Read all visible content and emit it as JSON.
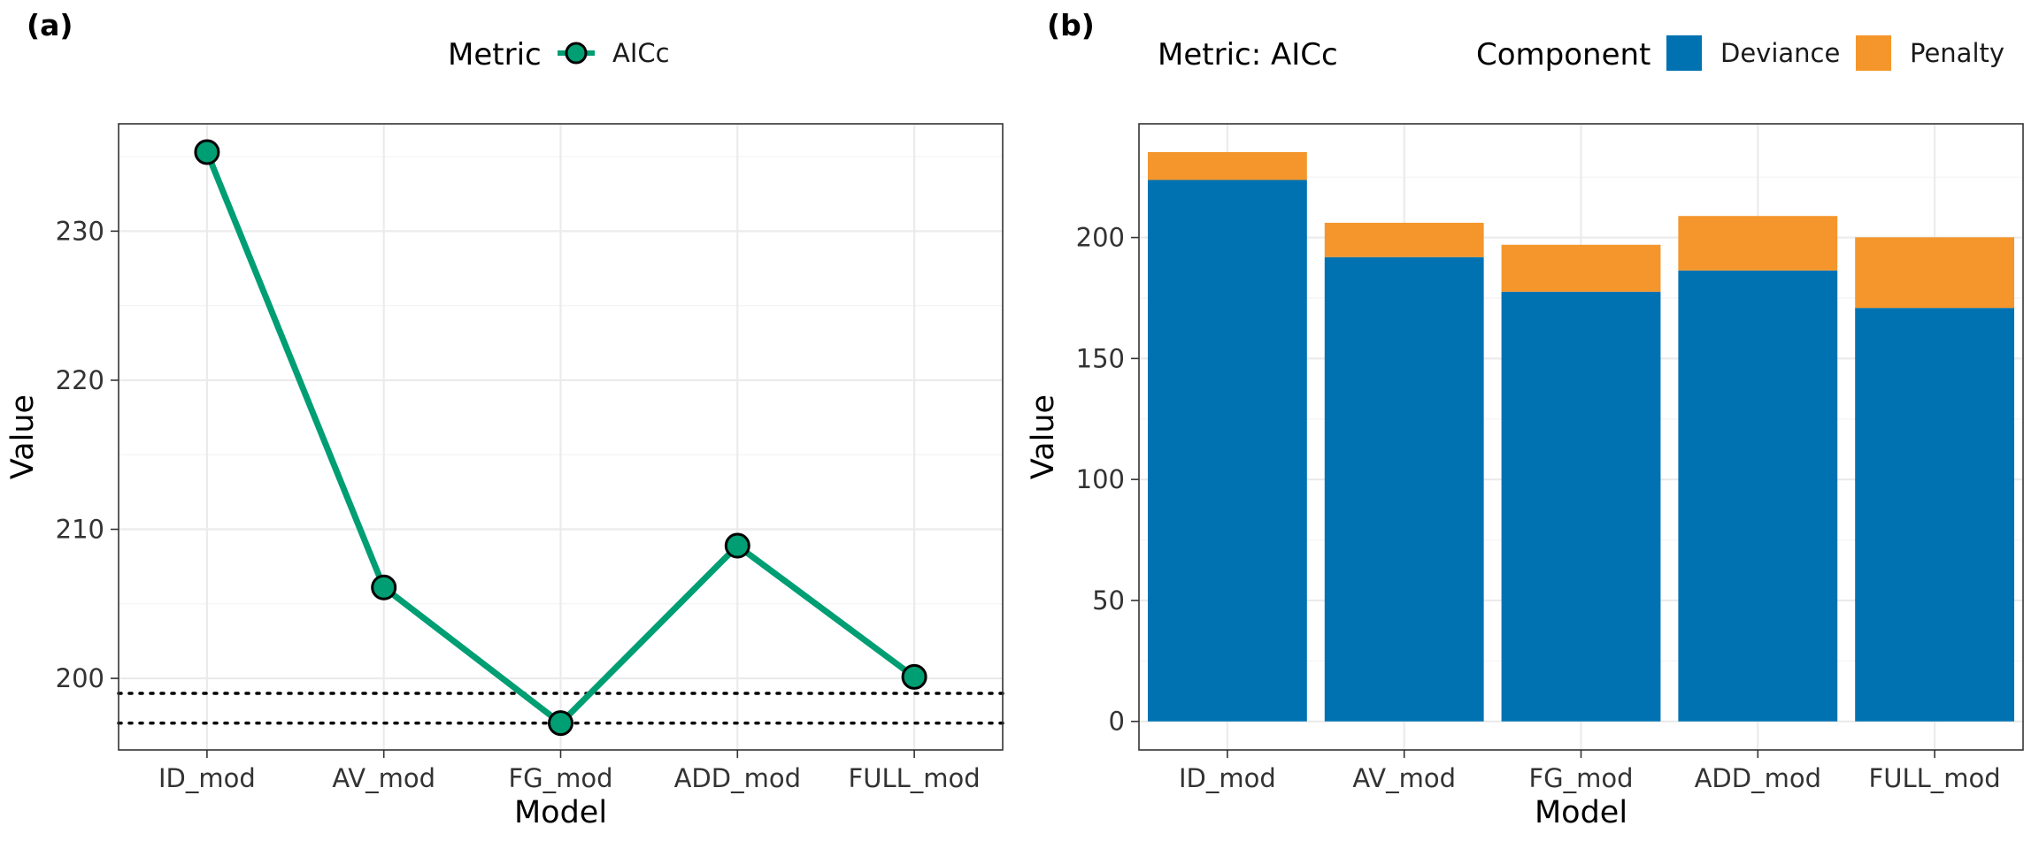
{
  "panels": {
    "a": {
      "tag": "(a)",
      "legend": {
        "title": "Metric",
        "entry": "AICc"
      }
    },
    "b": {
      "tag": "(b)",
      "metric_label": "Metric: AICc",
      "legend": {
        "title": "Component",
        "entries": [
          "Deviance",
          "Penalty"
        ]
      }
    }
  },
  "chart_data": [
    {
      "type": "line",
      "xlabel": "Model",
      "ylabel": "Value",
      "categories": [
        "ID_mod",
        "AV_mod",
        "FG_mod",
        "ADD_mod",
        "FULL_mod"
      ],
      "series": [
        {
          "name": "AICc",
          "values": [
            235.3,
            206.1,
            197.0,
            208.9,
            200.1
          ],
          "color": "#009e73"
        }
      ],
      "reference_lines": [
        197.0,
        199.0
      ],
      "ylim": [
        195.2,
        237.2
      ],
      "yticks": [
        200,
        210,
        220,
        230
      ],
      "grid": true
    },
    {
      "type": "bar",
      "stacked": true,
      "xlabel": "Model",
      "ylabel": "Value",
      "categories": [
        "ID_mod",
        "AV_mod",
        "FG_mod",
        "ADD_mod",
        "FULL_mod"
      ],
      "series": [
        {
          "name": "Deviance",
          "values": [
            223.8,
            191.9,
            177.6,
            186.4,
            170.9
          ],
          "color": "#0072b2"
        },
        {
          "name": "Penalty",
          "values": [
            11.5,
            14.2,
            19.4,
            22.5,
            29.2
          ],
          "color": "#f4962b"
        }
      ],
      "ylim": [
        -11.8,
        247.0
      ],
      "yticks": [
        0,
        50,
        100,
        150,
        200
      ],
      "grid": true
    }
  ]
}
